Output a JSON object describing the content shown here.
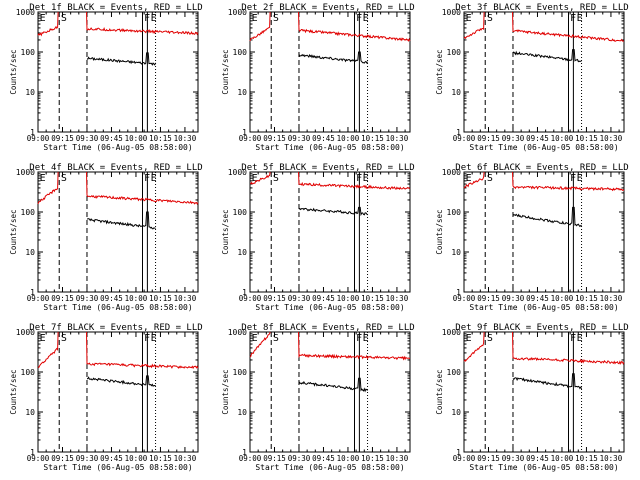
{
  "colors": {
    "events": "#000000",
    "lld": "#e00000",
    "axes": "#000000",
    "background": "#ffffff"
  },
  "shared": {
    "ylabel": "Counts/sec",
    "xlabel": "Start Time (06-Aug-05 08:58:00)",
    "xticklabels": [
      "09:00",
      "09:15",
      "09:30",
      "09:45",
      "10:00",
      "10:15",
      "10:30"
    ],
    "yticklabels": [
      "1",
      "10",
      "100",
      "1000"
    ],
    "region_markers": [
      "E",
      "S",
      "F",
      "E"
    ]
  },
  "chart_data": [
    {
      "type": "line",
      "title": "Det 1f BLACK = Events, RED = LLD",
      "xlabel": "Start Time (06-Aug-05 08:58:00)",
      "ylabel": "Counts/sec",
      "x_range": [
        "09:00",
        "10:38"
      ],
      "ylim": [
        1,
        1000
      ],
      "y_scale": "log",
      "series": [
        {
          "segments": [
            {
              "start": "09:30",
              "end": "10:12",
              "level": 70,
              "end_level": 50,
              "spike_at": "10:07",
              "spike": 95
            }
          ]
        },
        {
          "segments": [
            {
              "start": "09:00",
              "end": "09:12",
              "level": 260,
              "end_level": 420
            },
            {
              "start": "09:30",
              "end": "10:38",
              "level": 380,
              "end_level": 290
            }
          ]
        }
      ]
    },
    {
      "type": "line",
      "title": "Det 2f BLACK = Events, RED = LLD",
      "xlabel": "Start Time (06-Aug-05 08:58:00)",
      "ylabel": "Counts/sec",
      "x_range": [
        "09:00",
        "10:38"
      ],
      "ylim": [
        1,
        1000
      ],
      "y_scale": "log",
      "series": [
        {
          "segments": [
            {
              "start": "09:30",
              "end": "10:12",
              "level": 85,
              "end_level": 55,
              "spike_at": "10:07",
              "spike": 100
            }
          ]
        },
        {
          "segments": [
            {
              "start": "09:00",
              "end": "09:12",
              "level": 200,
              "end_level": 400
            },
            {
              "start": "09:30",
              "end": "10:38",
              "level": 350,
              "end_level": 200
            }
          ]
        }
      ]
    },
    {
      "type": "line",
      "title": "Det 3f BLACK = Events, RED = LLD",
      "xlabel": "Start Time (06-Aug-05 08:58:00)",
      "ylabel": "Counts/sec",
      "x_range": [
        "09:00",
        "10:38"
      ],
      "ylim": [
        1,
        1000
      ],
      "y_scale": "log",
      "series": [
        {
          "segments": [
            {
              "start": "09:30",
              "end": "10:12",
              "level": 95,
              "end_level": 60,
              "spike_at": "10:07",
              "spike": 115
            }
          ]
        },
        {
          "segments": [
            {
              "start": "09:00",
              "end": "09:12",
              "level": 220,
              "end_level": 400
            },
            {
              "start": "09:30",
              "end": "10:38",
              "level": 340,
              "end_level": 190
            }
          ]
        }
      ]
    },
    {
      "type": "line",
      "title": "Det 4f BLACK = Events, RED = LLD",
      "xlabel": "Start Time (06-Aug-05 08:58:00)",
      "ylabel": "Counts/sec",
      "x_range": [
        "09:00",
        "10:38"
      ],
      "ylim": [
        1,
        1000
      ],
      "y_scale": "log",
      "series": [
        {
          "segments": [
            {
              "start": "09:30",
              "end": "10:12",
              "level": 65,
              "end_level": 40,
              "spike_at": "10:07",
              "spike": 100
            }
          ]
        },
        {
          "segments": [
            {
              "start": "09:00",
              "end": "09:12",
              "level": 170,
              "end_level": 400
            },
            {
              "start": "09:30",
              "end": "10:38",
              "level": 250,
              "end_level": 170
            }
          ]
        }
      ]
    },
    {
      "type": "line",
      "title": "Det 5f BLACK = Events, RED = LLD",
      "xlabel": "Start Time (06-Aug-05 08:58:00)",
      "ylabel": "Counts/sec",
      "x_range": [
        "09:00",
        "10:38"
      ],
      "ylim": [
        1,
        1000
      ],
      "y_scale": "log",
      "series": [
        {
          "segments": [
            {
              "start": "09:30",
              "end": "10:12",
              "level": 120,
              "end_level": 90,
              "spike_at": "10:07",
              "spike": 130
            }
          ]
        },
        {
          "segments": [
            {
              "start": "09:00",
              "end": "09:12",
              "level": 500,
              "end_level": 800
            },
            {
              "start": "09:30",
              "end": "10:38",
              "level": 500,
              "end_level": 380
            }
          ]
        }
      ]
    },
    {
      "type": "line",
      "title": "Det 6f BLACK = Events, RED = LLD",
      "xlabel": "Start Time (06-Aug-05 08:58:00)",
      "ylabel": "Counts/sec",
      "x_range": [
        "09:00",
        "10:38"
      ],
      "ylim": [
        1,
        1000
      ],
      "y_scale": "log",
      "series": [
        {
          "segments": [
            {
              "start": "09:30",
              "end": "10:12",
              "level": 85,
              "end_level": 45,
              "spike_at": "10:07",
              "spike": 130
            }
          ]
        },
        {
          "segments": [
            {
              "start": "09:00",
              "end": "09:12",
              "level": 420,
              "end_level": 700
            },
            {
              "start": "09:30",
              "end": "10:38",
              "level": 420,
              "end_level": 370
            }
          ]
        }
      ]
    },
    {
      "type": "line",
      "title": "Det 7f BLACK = Events, RED = LLD",
      "xlabel": "Start Time (06-Aug-05 08:58:00)",
      "ylabel": "Counts/sec",
      "x_range": [
        "09:00",
        "10:38"
      ],
      "ylim": [
        1,
        1000
      ],
      "y_scale": "log",
      "series": [
        {
          "segments": [
            {
              "start": "09:30",
              "end": "10:12",
              "level": 70,
              "end_level": 45,
              "spike_at": "10:07",
              "spike": 80
            }
          ]
        },
        {
          "segments": [
            {
              "start": "09:00",
              "end": "09:12",
              "level": 130,
              "end_level": 380
            },
            {
              "start": "09:30",
              "end": "10:38",
              "level": 160,
              "end_level": 130
            }
          ]
        }
      ]
    },
    {
      "type": "line",
      "title": "Det 8f BLACK = Events, RED = LLD",
      "xlabel": "Start Time (06-Aug-05 08:58:00)",
      "ylabel": "Counts/sec",
      "x_range": [
        "09:00",
        "10:38"
      ],
      "ylim": [
        1,
        1000
      ],
      "y_scale": "log",
      "series": [
        {
          "segments": [
            {
              "start": "09:30",
              "end": "10:12",
              "level": 55,
              "end_level": 35,
              "spike_at": "10:07",
              "spike": 70
            }
          ]
        },
        {
          "segments": [
            {
              "start": "09:00",
              "end": "09:12",
              "level": 250,
              "end_level": 900
            },
            {
              "start": "09:30",
              "end": "10:38",
              "level": 260,
              "end_level": 220
            }
          ]
        }
      ]
    },
    {
      "type": "line",
      "title": "Det 9f BLACK = Events, RED = LLD",
      "xlabel": "Start Time (06-Aug-05 08:58:00)",
      "ylabel": "Counts/sec",
      "x_range": [
        "09:00",
        "10:38"
      ],
      "ylim": [
        1,
        1000
      ],
      "y_scale": "log",
      "series": [
        {
          "segments": [
            {
              "start": "09:30",
              "end": "10:12",
              "level": 70,
              "end_level": 40,
              "spike_at": "10:07",
              "spike": 90
            }
          ]
        },
        {
          "segments": [
            {
              "start": "09:00",
              "end": "09:12",
              "level": 180,
              "end_level": 500
            },
            {
              "start": "09:30",
              "end": "10:38",
              "level": 220,
              "end_level": 170
            }
          ]
        }
      ]
    }
  ]
}
